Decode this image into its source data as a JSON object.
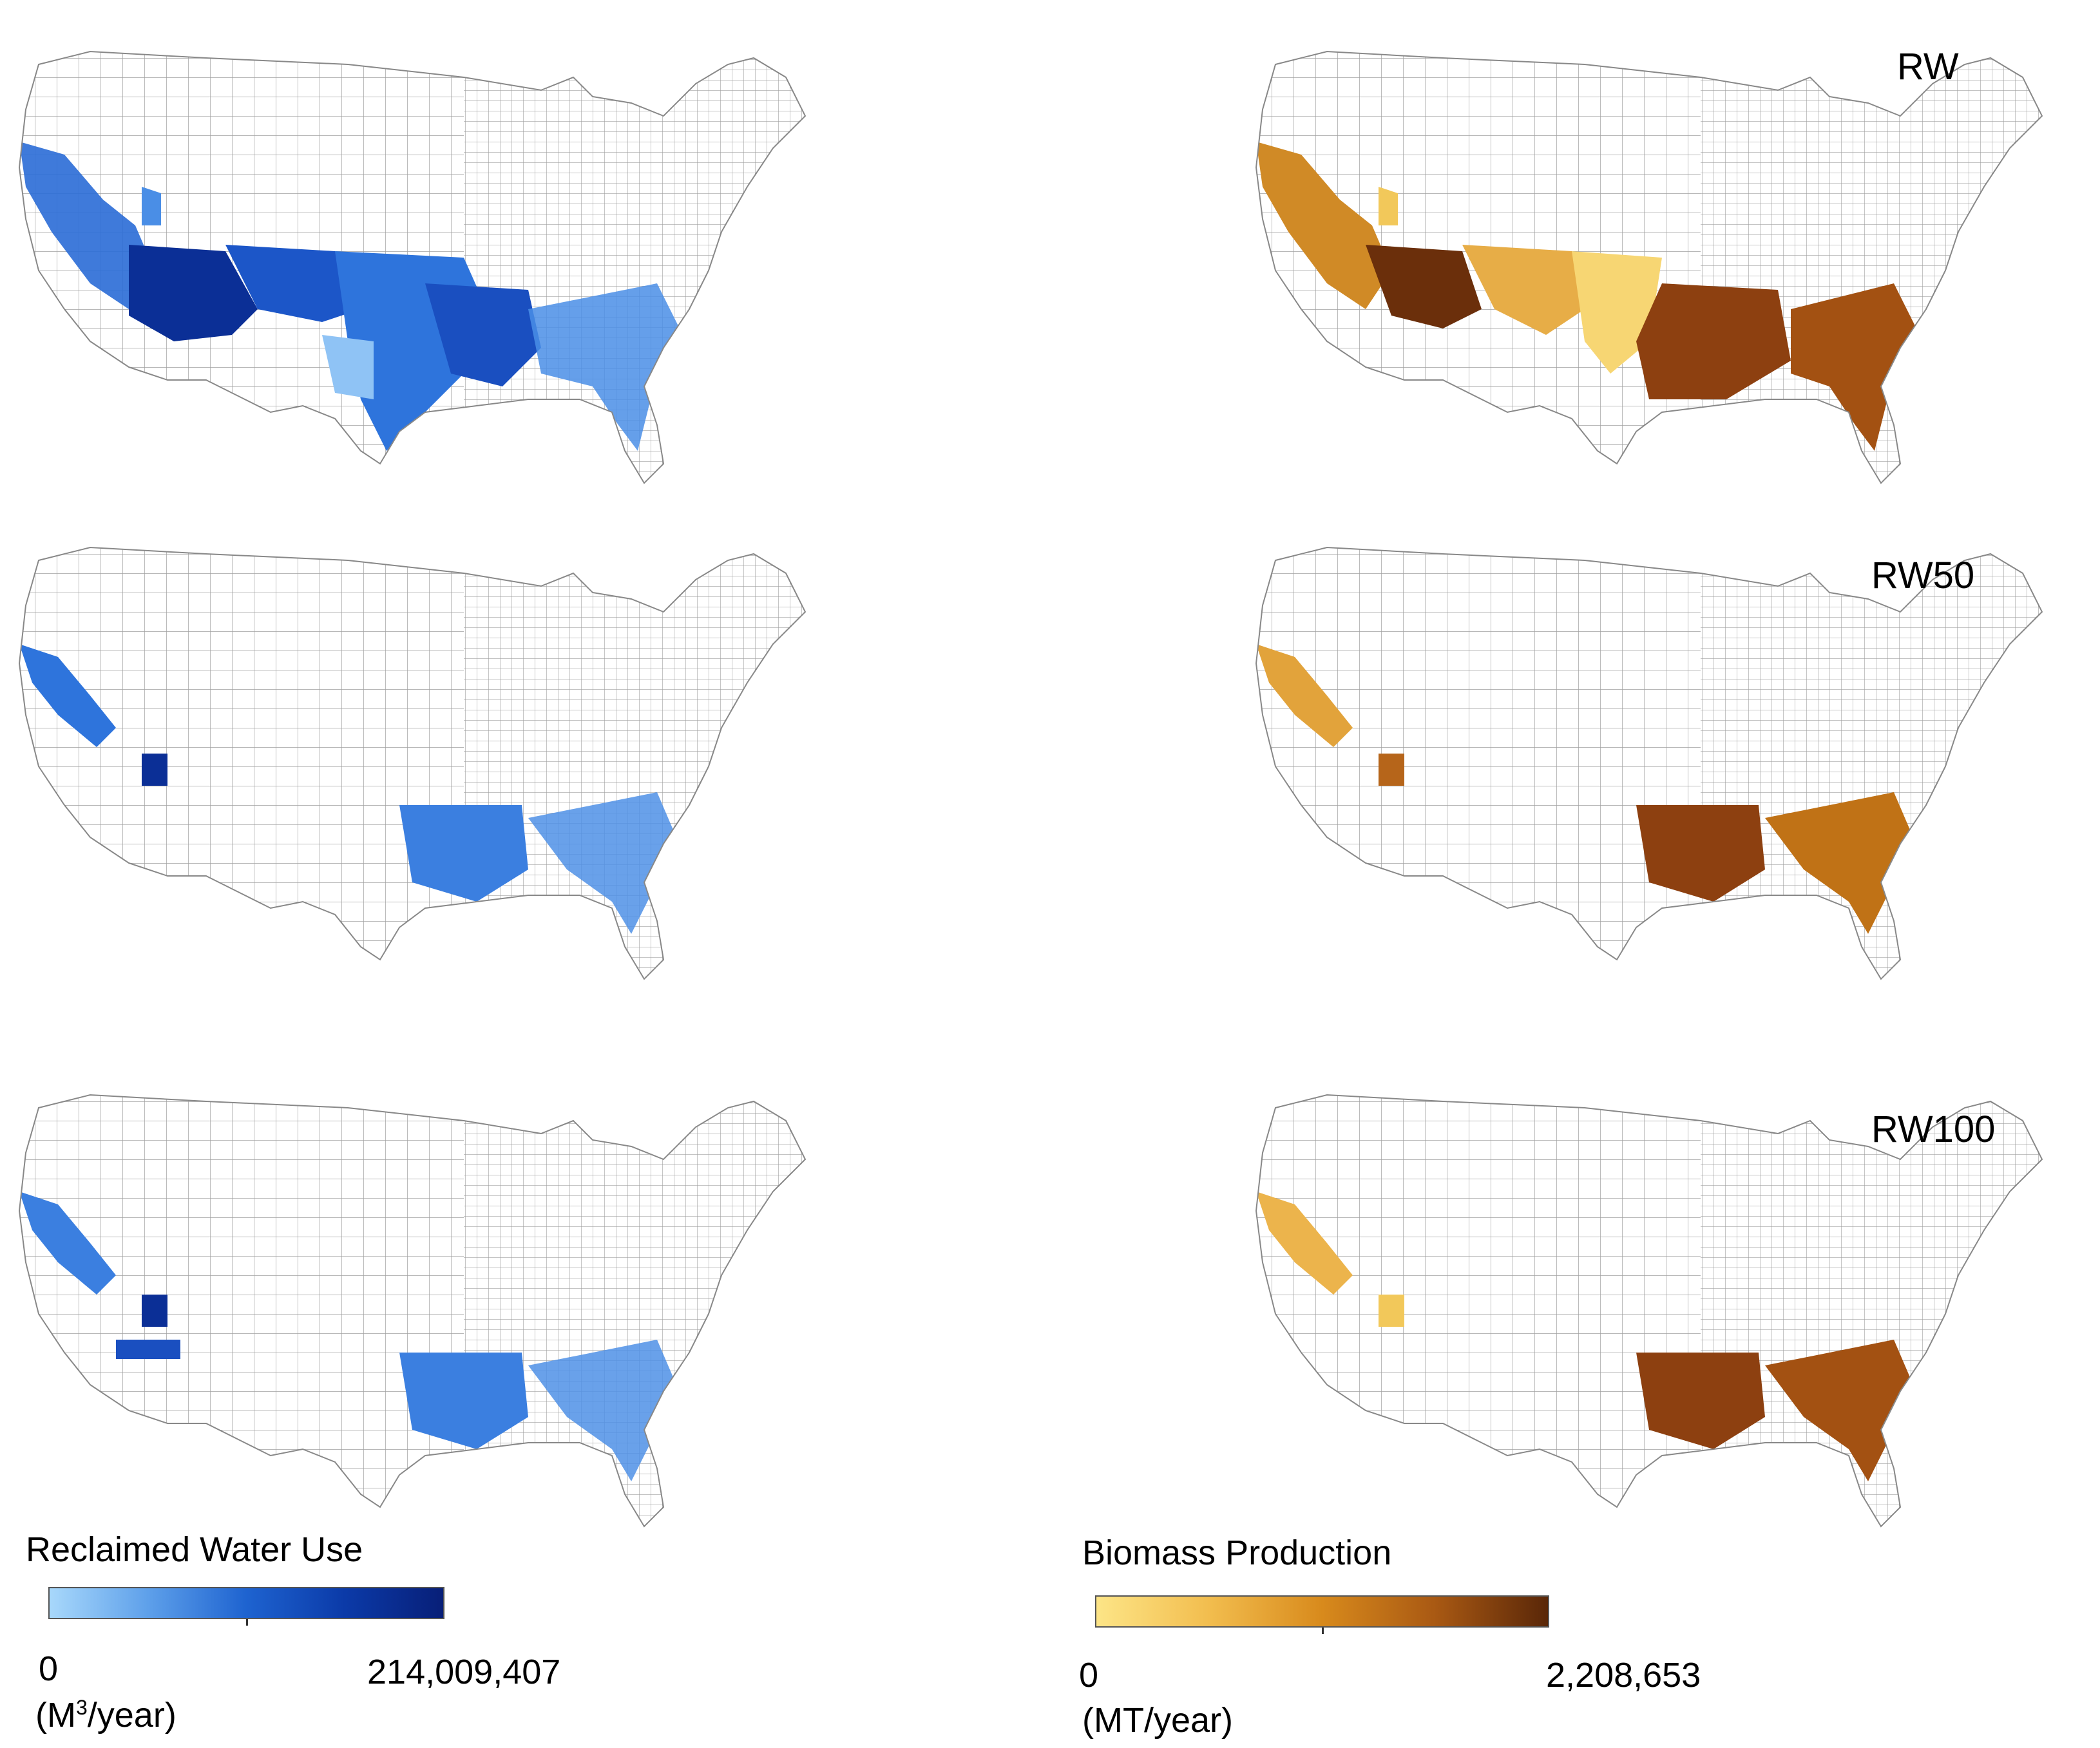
{
  "scenarios": {
    "rw": "RW",
    "rw50": "RW50",
    "rw100": "RW100"
  },
  "legend_water": {
    "title": "Reclaimed Water Use",
    "min": "0",
    "max": "214,009,407",
    "unit_prefix": "(M",
    "unit_sup": "3",
    "unit_suffix": "/year)"
  },
  "legend_biomass": {
    "title": "Biomass Production",
    "min": "0",
    "max": "2,208,653",
    "unit": "(MT/year)"
  },
  "colors": {
    "water_ramp": [
      "#a8d8fb",
      "#5ea0ea",
      "#1e63d0",
      "#0b3aa8",
      "#081f78"
    ],
    "biomass_ramp": [
      "#fde587",
      "#f2bd4e",
      "#d88a1c",
      "#a95913",
      "#5a2708"
    ],
    "county_fill": "#ffffff",
    "county_stroke": "#9a9a9a"
  }
}
